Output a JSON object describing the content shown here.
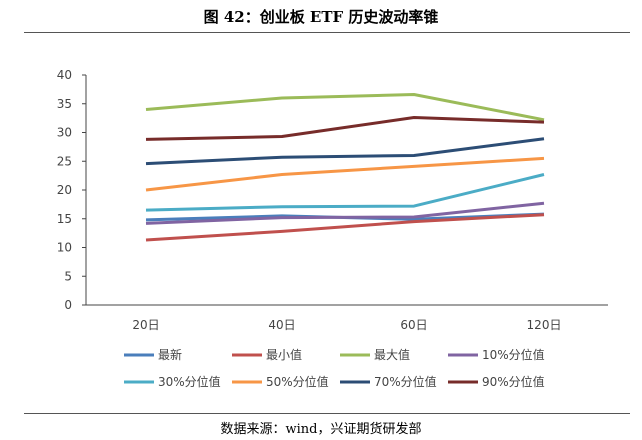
{
  "chart_data": {
    "type": "line",
    "title": "图 42：创业板 ETF 历史波动率锥",
    "categories": [
      "20日",
      "40日",
      "60日",
      "120日"
    ],
    "ylim": [
      0,
      40
    ],
    "yticks": [
      "0",
      "5",
      "10",
      "15",
      "20",
      "25",
      "30",
      "35",
      "40"
    ],
    "xlabel": "",
    "ylabel": "",
    "grid": false,
    "legend_position": "bottom",
    "series": [
      {
        "name": "最新",
        "color": "#4a7ebb",
        "values": [
          14.8,
          15.5,
          14.9,
          15.8
        ]
      },
      {
        "name": "最小值",
        "color": "#c0504d",
        "values": [
          11.3,
          12.8,
          14.5,
          15.7
        ]
      },
      {
        "name": "最大值",
        "color": "#9bbb59",
        "values": [
          34.0,
          36.0,
          36.6,
          32.2
        ]
      },
      {
        "name": "10%分位值",
        "color": "#8064a2",
        "values": [
          14.2,
          15.2,
          15.3,
          17.7
        ]
      },
      {
        "name": "30%分位值",
        "color": "#4bacc6",
        "values": [
          16.5,
          17.1,
          17.2,
          22.7
        ]
      },
      {
        "name": "50%分位值",
        "color": "#f79646",
        "values": [
          20.0,
          22.7,
          24.1,
          25.5
        ]
      },
      {
        "name": "70%分位值",
        "color": "#2c4d75",
        "values": [
          24.6,
          25.7,
          26.0,
          28.9
        ]
      },
      {
        "name": "90%分位值",
        "color": "#772c2a",
        "values": [
          28.8,
          29.3,
          32.6,
          31.8
        ]
      }
    ]
  },
  "source": "数据来源：wind，兴证期货研发部"
}
